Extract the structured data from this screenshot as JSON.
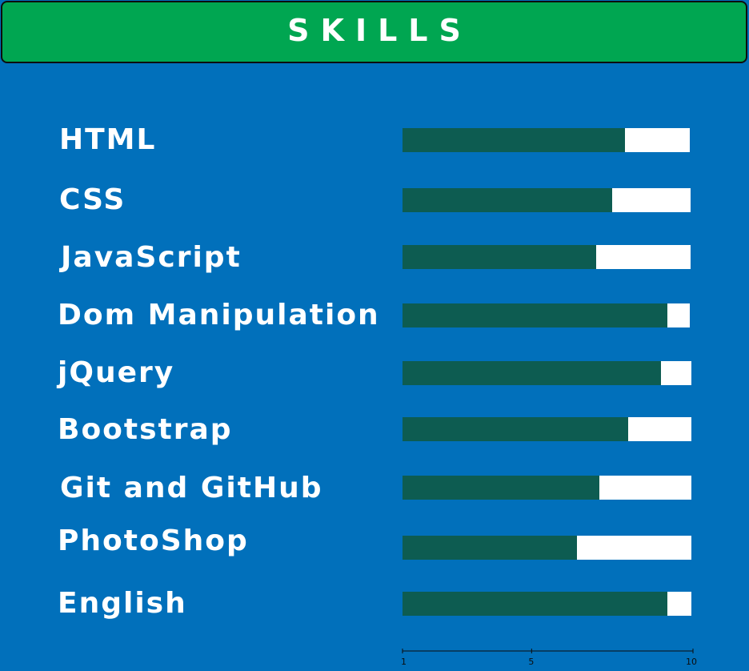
{
  "header": {
    "title": "SKILLS"
  },
  "colors": {
    "background": "#0170bb",
    "header_bg": "#00a651",
    "bar_fill": "#0d5c51",
    "bar_track": "#ffffff"
  },
  "chart_data": {
    "type": "bar",
    "orientation": "horizontal",
    "title": "SKILLS",
    "xlabel": "",
    "ylabel": "",
    "xlim": [
      1,
      10
    ],
    "x_ticks": [
      1,
      5,
      10
    ],
    "categories": [
      "HTML",
      "CSS",
      "JavaScript",
      "Dom Manipulation",
      "jQuery",
      "Bootstrap",
      "Git and GitHub",
      "PhotoShop",
      "English"
    ],
    "values": [
      7.9,
      7.5,
      7.0,
      9.2,
      9.0,
      8.0,
      7.1,
      6.4,
      9.2
    ],
    "grid": false
  }
}
